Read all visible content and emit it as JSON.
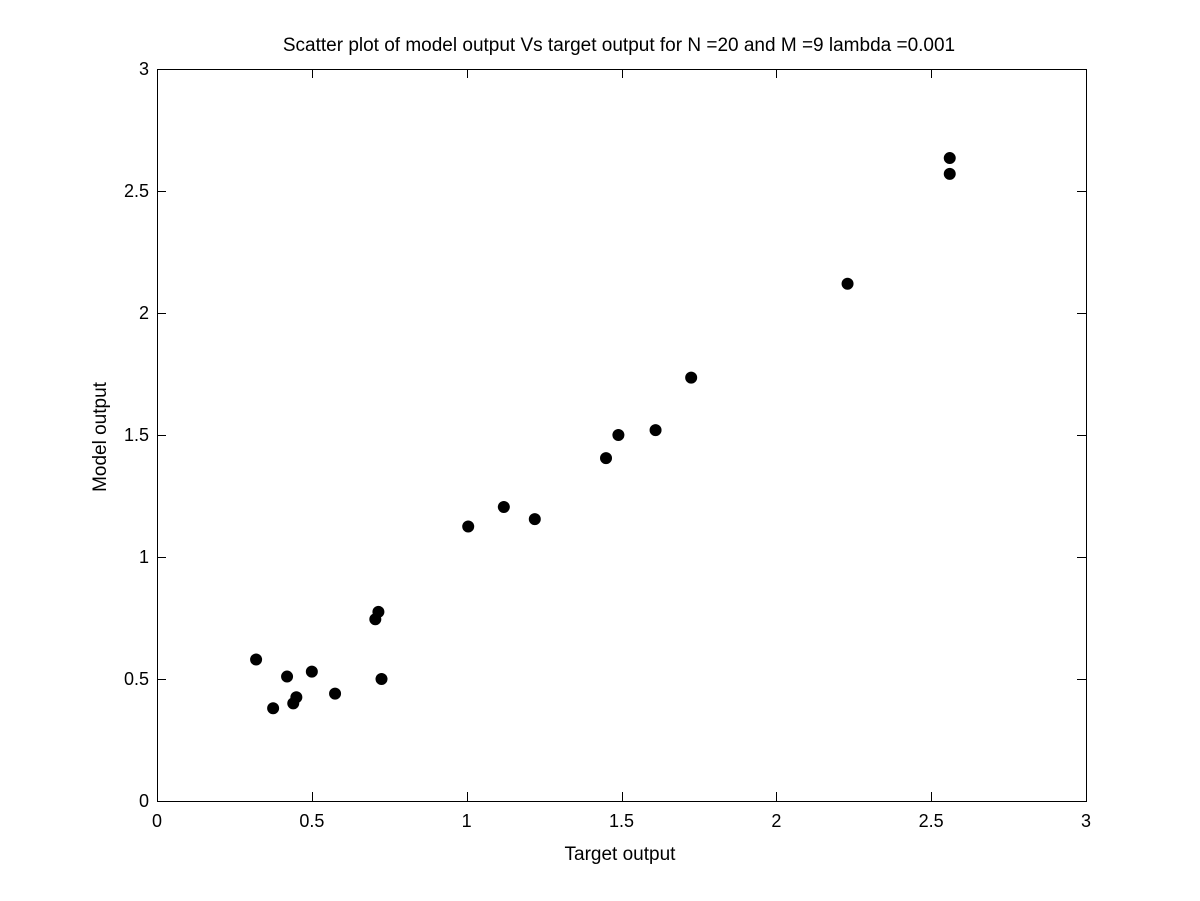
{
  "chart_data": {
    "type": "scatter",
    "title": "Scatter plot of model output Vs target output for N =20 and M =9 lambda =0.001",
    "xlabel": "Target output",
    "ylabel": "Model output",
    "xlim": [
      0,
      3
    ],
    "ylim": [
      0,
      3
    ],
    "xticks": [
      0,
      0.5,
      1,
      1.5,
      2,
      2.5,
      3
    ],
    "yticks": [
      0,
      0.5,
      1,
      1.5,
      2,
      2.5,
      3
    ],
    "xtick_labels": [
      "0",
      "0.5",
      "1",
      "1.5",
      "2",
      "2.5",
      "3"
    ],
    "ytick_labels": [
      "0",
      "0.5",
      "1",
      "1.5",
      "2",
      "2.5",
      "3"
    ],
    "grid": false,
    "marker_color": "#000000",
    "points": [
      {
        "x": 0.32,
        "y": 0.58
      },
      {
        "x": 0.375,
        "y": 0.38
      },
      {
        "x": 0.42,
        "y": 0.51
      },
      {
        "x": 0.44,
        "y": 0.4
      },
      {
        "x": 0.45,
        "y": 0.425
      },
      {
        "x": 0.5,
        "y": 0.53
      },
      {
        "x": 0.575,
        "y": 0.44
      },
      {
        "x": 0.705,
        "y": 0.745
      },
      {
        "x": 0.715,
        "y": 0.775
      },
      {
        "x": 0.725,
        "y": 0.5
      },
      {
        "x": 1.005,
        "y": 1.125
      },
      {
        "x": 1.12,
        "y": 1.205
      },
      {
        "x": 1.22,
        "y": 1.155
      },
      {
        "x": 1.45,
        "y": 1.405
      },
      {
        "x": 1.49,
        "y": 1.5
      },
      {
        "x": 1.61,
        "y": 1.52
      },
      {
        "x": 1.725,
        "y": 1.735
      },
      {
        "x": 2.23,
        "y": 2.12
      },
      {
        "x": 2.56,
        "y": 2.57
      },
      {
        "x": 2.56,
        "y": 2.635
      }
    ]
  }
}
